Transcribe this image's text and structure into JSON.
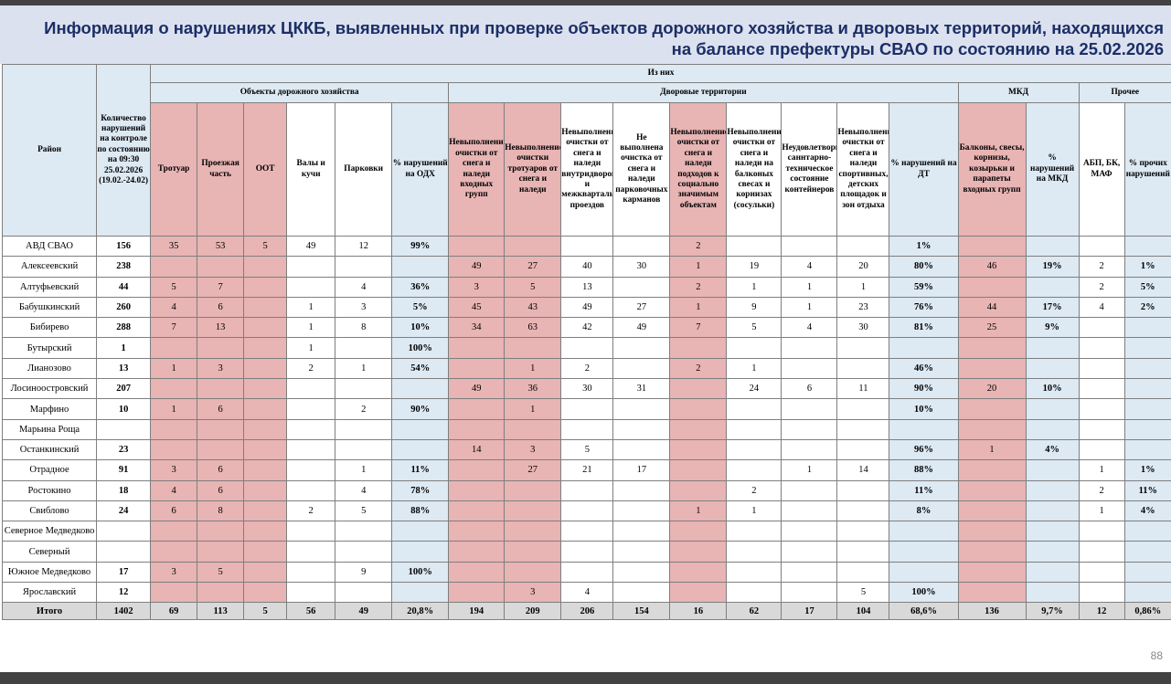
{
  "title": "Информация о нарушениях ЦККБ, выявленных при проверке объектов дорожного хозяйства и дворовых территорий, находящихся на балансе префектуры СВАО по состоянию на 25.02.2026",
  "page_number": "88",
  "headers": {
    "district": "Район",
    "count": "Количество нарушений на контроле по состоянию на 09:30 25.02.2026 (19.02.-24.02)",
    "of_them": "Из них",
    "odh": "Объекты дорожного хозяйства",
    "dt": "Дворовые территории",
    "mkd": "МКД",
    "other": "Прочее",
    "cols": [
      "Тротуар",
      "Проезжая часть",
      "ООТ",
      "Валы и кучи",
      "Парковки",
      "% нарушений на ОДХ",
      "Невыполнение очистки от снега и наледи входных групп",
      "Невыполнение очистки тротуаров от снега и наледи",
      "Невыполнение очистки от снега и наледи внутридворовых и межквартальных проездов",
      "Не выполнена очистка от снега и наледи парковочных карманов",
      "Невыполнение очистки от снега и наледи подходов к социально значимым объектам",
      "Невыполнение очистки от снега и наледи на балконых свесах и корнизах (сосульки)",
      "Неудовлетворительное саннтарно-техническое состояние контейнеров",
      "Невыполнение очистки от снега и наледи спортивных, детских площадок и зон отдыха",
      "% нарушений на ДТ",
      "Балконы, свесы, корнизы, козырьки и парапеты входных групп",
      "% нарушений на МКД",
      "АБП, БК, МАФ",
      "% прочих нарушений"
    ]
  },
  "rows": [
    {
      "district": "АВД СВАО",
      "total": "156",
      "cells": [
        "35",
        "53",
        "5",
        "49",
        "12",
        "99%",
        "",
        "",
        "",
        "",
        "2",
        "",
        "",
        "",
        "1%",
        "",
        "",
        "",
        ""
      ]
    },
    {
      "district": "Алексеевский",
      "total": "238",
      "cells": [
        "",
        "",
        "",
        "",
        "",
        "",
        "49",
        "27",
        "40",
        "30",
        "1",
        "19",
        "4",
        "20",
        "80%",
        "46",
        "19%",
        "2",
        "1%"
      ]
    },
    {
      "district": "Алтуфьевский",
      "total": "44",
      "cells": [
        "5",
        "7",
        "",
        "",
        "4",
        "36%",
        "3",
        "5",
        "13",
        "",
        "2",
        "1",
        "1",
        "1",
        "59%",
        "",
        "",
        "2",
        "5%"
      ]
    },
    {
      "district": "Бабушкинский",
      "total": "260",
      "cells": [
        "4",
        "6",
        "",
        "1",
        "3",
        "5%",
        "45",
        "43",
        "49",
        "27",
        "1",
        "9",
        "1",
        "23",
        "76%",
        "44",
        "17%",
        "4",
        "2%"
      ]
    },
    {
      "district": "Бибирево",
      "total": "288",
      "cells": [
        "7",
        "13",
        "",
        "1",
        "8",
        "10%",
        "34",
        "63",
        "42",
        "49",
        "7",
        "5",
        "4",
        "30",
        "81%",
        "25",
        "9%",
        "",
        ""
      ]
    },
    {
      "district": "Бутырский",
      "total": "1",
      "cells": [
        "",
        "",
        "",
        "1",
        "",
        "100%",
        "",
        "",
        "",
        "",
        "",
        "",
        "",
        "",
        "",
        "",
        "",
        "",
        ""
      ]
    },
    {
      "district": "Лианозово",
      "total": "13",
      "cells": [
        "1",
        "3",
        "",
        "2",
        "1",
        "54%",
        "",
        "1",
        "2",
        "",
        "2",
        "1",
        "",
        "",
        "46%",
        "",
        "",
        "",
        ""
      ]
    },
    {
      "district": "Лосиноостровский",
      "total": "207",
      "cells": [
        "",
        "",
        "",
        "",
        "",
        "",
        "49",
        "36",
        "30",
        "31",
        "",
        "24",
        "6",
        "11",
        "90%",
        "20",
        "10%",
        "",
        ""
      ]
    },
    {
      "district": "Марфино",
      "total": "10",
      "cells": [
        "1",
        "6",
        "",
        "",
        "2",
        "90%",
        "",
        "1",
        "",
        "",
        "",
        "",
        "",
        "",
        "10%",
        "",
        "",
        "",
        ""
      ]
    },
    {
      "district": "Марьина Роща",
      "total": "",
      "cells": [
        "",
        "",
        "",
        "",
        "",
        "",
        "",
        "",
        "",
        "",
        "",
        "",
        "",
        "",
        "",
        "",
        "",
        "",
        ""
      ]
    },
    {
      "district": "Останкинский",
      "total": "23",
      "cells": [
        "",
        "",
        "",
        "",
        "",
        "",
        "14",
        "3",
        "5",
        "",
        "",
        "",
        "",
        "",
        "96%",
        "1",
        "4%",
        "",
        ""
      ]
    },
    {
      "district": "Отрадное",
      "total": "91",
      "cells": [
        "3",
        "6",
        "",
        "",
        "1",
        "11%",
        "",
        "27",
        "21",
        "17",
        "",
        "",
        "1",
        "14",
        "88%",
        "",
        "",
        "1",
        "1%"
      ]
    },
    {
      "district": "Ростокино",
      "total": "18",
      "cells": [
        "4",
        "6",
        "",
        "",
        "4",
        "78%",
        "",
        "",
        "",
        "",
        "",
        "2",
        "",
        "",
        "11%",
        "",
        "",
        "2",
        "11%"
      ]
    },
    {
      "district": "Свиблово",
      "total": "24",
      "cells": [
        "6",
        "8",
        "",
        "2",
        "5",
        "88%",
        "",
        "",
        "",
        "",
        "1",
        "1",
        "",
        "",
        "8%",
        "",
        "",
        "1",
        "4%"
      ]
    },
    {
      "district": "Северное Медведково",
      "total": "",
      "cells": [
        "",
        "",
        "",
        "",
        "",
        "",
        "",
        "",
        "",
        "",
        "",
        "",
        "",
        "",
        "",
        "",
        "",
        "",
        ""
      ]
    },
    {
      "district": "Северный",
      "total": "",
      "cells": [
        "",
        "",
        "",
        "",
        "",
        "",
        "",
        "",
        "",
        "",
        "",
        "",
        "",
        "",
        "",
        "",
        "",
        "",
        ""
      ]
    },
    {
      "district": "Южное Медведково",
      "total": "17",
      "cells": [
        "3",
        "5",
        "",
        "",
        "9",
        "100%",
        "",
        "",
        "",
        "",
        "",
        "",
        "",
        "",
        "",
        "",
        "",
        "",
        ""
      ]
    },
    {
      "district": "Ярославский",
      "total": "12",
      "cells": [
        "",
        "",
        "",
        "",
        "",
        "",
        "",
        "3",
        "4",
        "",
        "",
        "",
        "",
        "5",
        "100%",
        "",
        "",
        "",
        ""
      ]
    }
  ],
  "totals": {
    "label": "Итого",
    "total": "1402",
    "cells": [
      "69",
      "113",
      "5",
      "56",
      "49",
      "20,8%",
      "194",
      "209",
      "206",
      "154",
      "16",
      "62",
      "17",
      "104",
      "68,6%",
      "136",
      "9,7%",
      "12",
      "0,86%"
    ]
  },
  "colors": {
    "pink": "#e8b4b4",
    "blue": "#dde9f3",
    "title_bg": "#dce1ef",
    "title_text": "#1b2f66",
    "total_bg": "#d9d9d9"
  }
}
